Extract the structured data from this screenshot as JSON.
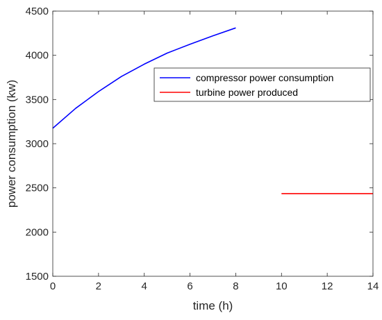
{
  "chart_data": {
    "type": "line",
    "xlabel": "time (h)",
    "ylabel": "power consumption (kw)",
    "xlim": [
      0,
      14
    ],
    "ylim": [
      1500,
      4500
    ],
    "xticks": [
      0,
      2,
      4,
      6,
      8,
      10,
      12,
      14
    ],
    "yticks": [
      1500,
      2000,
      2500,
      3000,
      3500,
      4000,
      4500
    ],
    "grid": false,
    "box": true,
    "legend_position": "top-right",
    "series": [
      {
        "name": "compressor power consumption",
        "color": "#0000ff",
        "x": [
          0,
          1,
          2,
          3,
          4,
          5,
          6,
          7,
          8
        ],
        "y": [
          3175,
          3400,
          3590,
          3760,
          3900,
          4025,
          4125,
          4220,
          4310
        ]
      },
      {
        "name": "turbine power produced",
        "color": "#ff0000",
        "x": [
          10,
          14
        ],
        "y": [
          2435,
          2435
        ]
      }
    ]
  }
}
